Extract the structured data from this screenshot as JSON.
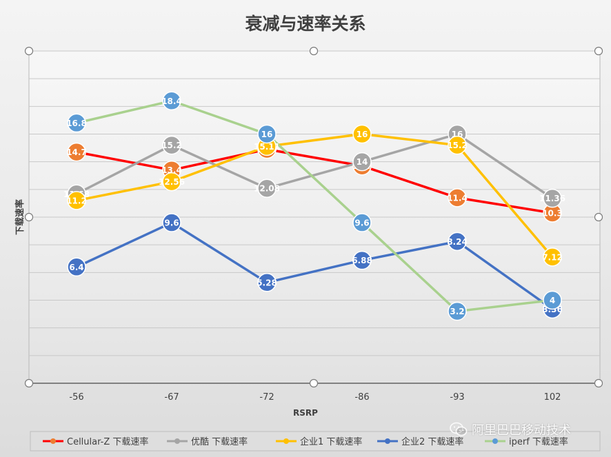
{
  "chart_data": {
    "type": "line",
    "title": "衰减与速率关系",
    "xlabel": "RSRP",
    "ylabel": "下载速率",
    "categories": [
      "-56",
      "-67",
      "-72",
      "-86",
      "-93",
      "102"
    ],
    "ylim": [
      -2,
      22
    ],
    "grid": true,
    "legend_position": "bottom",
    "series": [
      {
        "name": "Cellular-Z 下载速率",
        "color": "#ff0000",
        "marker": "#ed7d31",
        "values": [
          14.7,
          13.4,
          14.9,
          13.7,
          11.4,
          10.3
        ],
        "labels": [
          "14.7",
          "13.4",
          "14.9",
          "13.7",
          "11.4",
          "10.3"
        ]
      },
      {
        "name": "优酷 下载速率",
        "color": "#a5a5a5",
        "marker": "#a5a5a5",
        "values": [
          11.68,
          15.2,
          12.08,
          14,
          16,
          11.36
        ],
        "labels": [
          "11.68",
          "15.2",
          "12.08",
          "14",
          "16",
          "11.36"
        ]
      },
      {
        "name": "企业1 下载速率",
        "color": "#ffc000",
        "marker": "#ffc000",
        "values": [
          11.2,
          12.56,
          15.11,
          16,
          15.2,
          7.12
        ],
        "labels": [
          "11.2",
          "12.56",
          "15.11",
          "16",
          "15.2",
          "7.12"
        ]
      },
      {
        "name": "企业2 下载速率",
        "color": "#4472c4",
        "marker": "#4472c4",
        "values": [
          6.4,
          9.6,
          5.28,
          6.88,
          8.24,
          3.36
        ],
        "labels": [
          "6.4",
          "9.6",
          "5.28",
          "6.88",
          "8.24",
          "3.36"
        ]
      },
      {
        "name": "iperf 下载速率",
        "color": "#a9d18e",
        "marker": "#5b9bd5",
        "values": [
          16.8,
          18.4,
          16,
          9.6,
          3.2,
          4
        ],
        "labels": [
          "16.8",
          "18.4",
          "16",
          "9.6",
          "3.2",
          "4"
        ]
      }
    ]
  },
  "watermark": {
    "icon": "wechat-icon",
    "text": "阿里巴巴移动技术"
  }
}
